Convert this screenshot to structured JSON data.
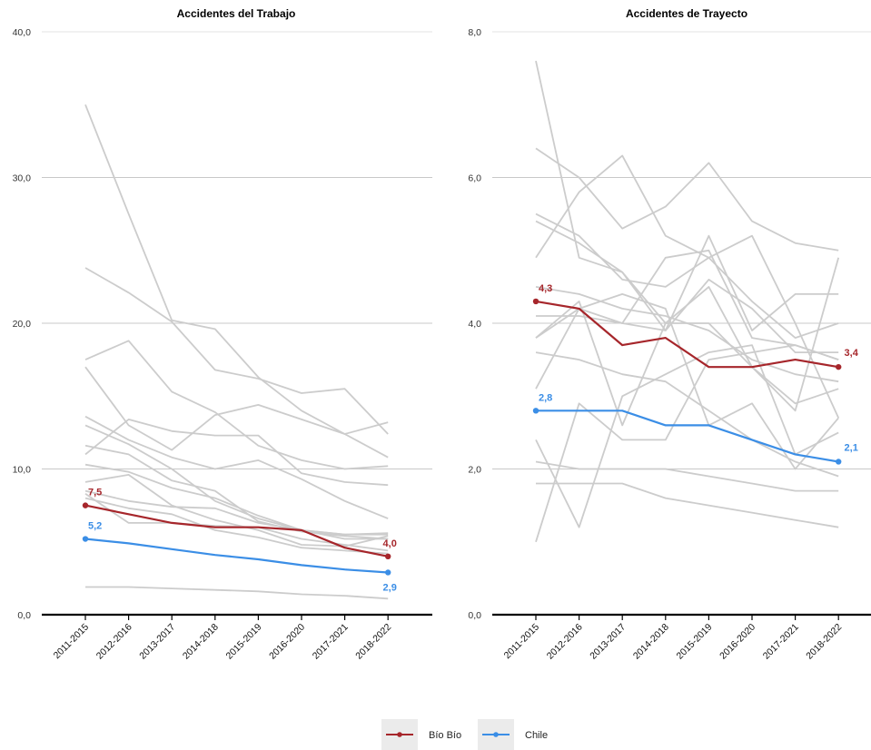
{
  "colors": {
    "bio_bio": "#a6262b",
    "chile": "#3b8ee6",
    "other": "#cccccc",
    "grid": "#c8c8c8",
    "axis": "#000000"
  },
  "legend": [
    {
      "name": "Bío Bío",
      "color": "#a6262b"
    },
    {
      "name": "Chile",
      "color": "#3b8ee6"
    }
  ],
  "chart_data": [
    {
      "type": "line",
      "title": "Accidentes del Trabajo",
      "categories": [
        "2011-2015",
        "2012-2016",
        "2013-2017",
        "2014-2018",
        "2015-2019",
        "2016-2020",
        "2017-2021",
        "2018-2022"
      ],
      "ylim": [
        0,
        40
      ],
      "yticks": [
        "0,0",
        "10,0",
        "20,0",
        "30,0",
        "40,0"
      ],
      "series": [
        {
          "name": "Bío Bío",
          "highlight": "bio_bio",
          "values": [
            7.5,
            6.9,
            6.3,
            6.0,
            6.0,
            5.8,
            4.6,
            4.0
          ],
          "labels": {
            "first": "7,5",
            "last": "4,0"
          }
        },
        {
          "name": "Chile",
          "highlight": "chile",
          "values": [
            5.2,
            4.9,
            4.5,
            4.1,
            3.8,
            3.4,
            3.1,
            2.9
          ],
          "labels": {
            "first": "5,2",
            "last": "2,9"
          }
        }
      ],
      "background_series": [
        [
          35.0,
          27.5,
          20.2,
          19.6,
          16.3,
          14.0,
          12.4,
          10.8
        ],
        [
          23.8,
          22.1,
          20.1,
          16.8,
          16.2,
          15.2,
          15.5,
          12.4
        ],
        [
          17.5,
          18.8,
          15.3,
          13.9,
          11.6,
          10.6,
          10.0,
          10.2
        ],
        [
          17.0,
          13.0,
          11.3,
          13.7,
          14.4,
          13.4,
          12.4,
          13.2
        ],
        [
          13.6,
          12.0,
          10.8,
          10.0,
          10.6,
          9.3,
          7.8,
          6.6
        ],
        [
          13.0,
          11.7,
          10.0,
          7.8,
          6.6,
          5.8,
          5.2,
          5.2
        ],
        [
          11.6,
          11.0,
          9.2,
          8.5,
          6.4,
          5.7,
          5.4,
          5.2
        ],
        [
          11.0,
          13.4,
          12.6,
          12.3,
          12.3,
          9.7,
          9.1,
          8.9
        ],
        [
          10.3,
          9.8,
          8.7,
          8.0,
          6.8,
          5.8,
          5.5,
          5.5
        ],
        [
          9.1,
          9.6,
          7.5,
          6.5,
          5.8,
          4.8,
          4.7,
          5.4
        ],
        [
          8.0,
          7.3,
          6.9,
          5.8,
          5.3,
          4.6,
          4.4,
          4.2
        ],
        [
          8.3,
          6.3,
          6.3,
          6.1,
          6.0,
          5.2,
          4.8,
          4.4
        ],
        [
          8.5,
          7.8,
          7.4,
          7.3,
          6.3,
          5.8,
          5.5,
          5.6
        ],
        [
          1.9,
          1.9,
          1.8,
          1.7,
          1.6,
          1.4,
          1.3,
          1.1
        ]
      ]
    },
    {
      "type": "line",
      "title": "Accidentes de Trayecto",
      "categories": [
        "2011-2015",
        "2012-2016",
        "2013-2017",
        "2014-2018",
        "2015-2019",
        "2016-2020",
        "2017-2021",
        "2018-2022"
      ],
      "ylim": [
        0,
        8
      ],
      "yticks": [
        "0,0",
        "2,0",
        "4,0",
        "6,0",
        "8,0"
      ],
      "series": [
        {
          "name": "Bío Bío",
          "highlight": "bio_bio",
          "values": [
            4.3,
            4.2,
            3.7,
            3.8,
            3.4,
            3.4,
            3.5,
            3.4
          ],
          "labels": {
            "first": "4,3",
            "last": "3,4"
          }
        },
        {
          "name": "Chile",
          "highlight": "chile",
          "values": [
            2.8,
            2.8,
            2.8,
            2.6,
            2.6,
            2.4,
            2.2,
            2.1
          ],
          "labels": {
            "first": "2,8",
            "last": "2,1"
          }
        }
      ],
      "background_series": [
        [
          7.6,
          4.9,
          4.7,
          4.0,
          4.0,
          3.4,
          2.9,
          3.1
        ],
        [
          6.4,
          6.0,
          5.3,
          5.6,
          6.2,
          5.4,
          5.1,
          5.0
        ],
        [
          5.5,
          5.2,
          4.6,
          4.5,
          4.9,
          4.3,
          3.8,
          4.0
        ],
        [
          5.4,
          5.1,
          4.7,
          3.9,
          5.2,
          3.9,
          4.4,
          4.4
        ],
        [
          4.9,
          5.8,
          6.3,
          5.2,
          4.9,
          5.2,
          4.0,
          2.7
        ],
        [
          4.5,
          4.4,
          4.2,
          4.1,
          3.9,
          3.5,
          3.3,
          3.2
        ],
        [
          4.1,
          4.1,
          4.0,
          3.9,
          4.6,
          4.2,
          3.6,
          3.6
        ],
        [
          3.8,
          4.3,
          2.6,
          4.0,
          4.5,
          3.4,
          2.8,
          4.9
        ],
        [
          3.8,
          4.2,
          4.4,
          4.2,
          2.6,
          2.9,
          2.0,
          2.7
        ],
        [
          3.6,
          3.5,
          3.3,
          3.2,
          2.8,
          2.4,
          2.1,
          1.9
        ],
        [
          3.1,
          4.2,
          4.0,
          4.9,
          5.0,
          3.8,
          3.7,
          3.5
        ],
        [
          2.4,
          1.2,
          3.0,
          3.3,
          3.6,
          3.7,
          2.2,
          2.5
        ],
        [
          2.1,
          2.0,
          2.0,
          2.0,
          1.9,
          1.8,
          1.7,
          1.7
        ],
        [
          1.8,
          1.8,
          1.8,
          1.6,
          1.5,
          1.4,
          1.3,
          1.2
        ],
        [
          1.0,
          2.9,
          2.4,
          2.4,
          3.5,
          3.6,
          3.7,
          3.5
        ]
      ]
    }
  ]
}
